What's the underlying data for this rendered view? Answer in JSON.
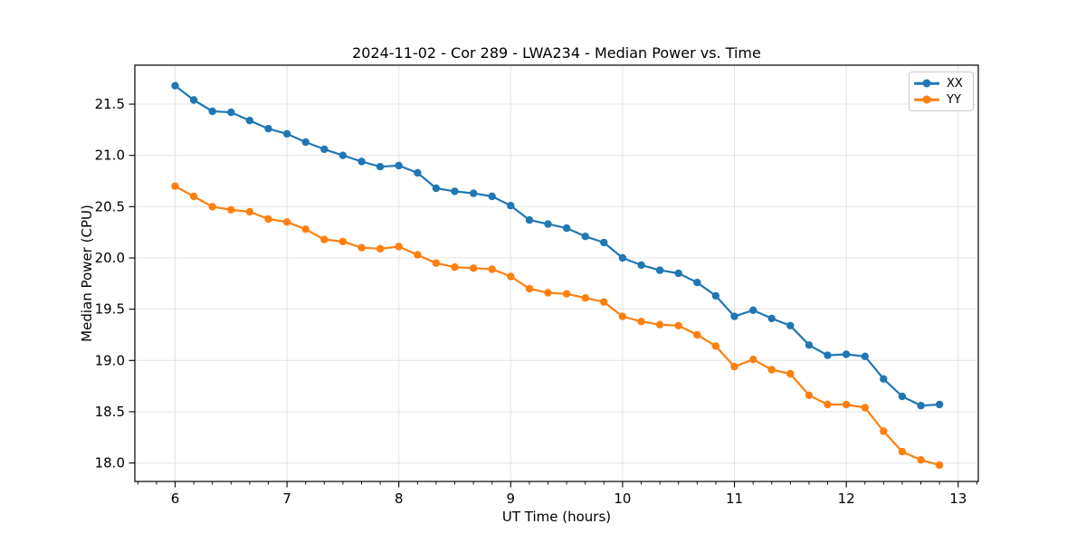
{
  "chart_data": {
    "type": "line",
    "title": "2024-11-02 - Cor 289 - LWA234 - Median Power vs. Time",
    "xlabel": "UT Time (hours)",
    "ylabel": "Median Power (CPU)",
    "xlim": [
      5.64,
      13.18
    ],
    "ylim": [
      17.82,
      21.88
    ],
    "x_ticks": [
      6,
      7,
      8,
      9,
      10,
      11,
      12,
      13
    ],
    "y_ticks": [
      18.0,
      18.5,
      19.0,
      19.5,
      20.0,
      20.5,
      21.0,
      21.5
    ],
    "minor_x_tick_interval_hours": 0.1667,
    "grid": true,
    "legend_position": "upper right",
    "x": [
      6.0,
      6.167,
      6.333,
      6.5,
      6.667,
      6.833,
      7.0,
      7.167,
      7.333,
      7.5,
      7.667,
      7.833,
      8.0,
      8.167,
      8.333,
      8.5,
      8.667,
      8.833,
      9.0,
      9.167,
      9.333,
      9.5,
      9.667,
      9.833,
      10.0,
      10.167,
      10.333,
      10.5,
      10.667,
      10.833,
      11.0,
      11.167,
      11.333,
      11.5,
      11.667,
      11.833,
      12.0,
      12.167,
      12.333,
      12.5,
      12.667,
      12.833
    ],
    "series": [
      {
        "name": "XX",
        "color": "#1f77b4",
        "values": [
          21.68,
          21.54,
          21.43,
          21.42,
          21.34,
          21.26,
          21.21,
          21.13,
          21.06,
          21.0,
          20.94,
          20.89,
          20.9,
          20.83,
          20.68,
          20.65,
          20.63,
          20.6,
          20.51,
          20.37,
          20.33,
          20.29,
          20.21,
          20.15,
          20.0,
          19.93,
          19.88,
          19.85,
          19.76,
          19.63,
          19.43,
          19.49,
          19.41,
          19.34,
          19.15,
          19.05,
          19.06,
          19.04,
          18.82,
          18.65,
          18.56,
          18.57
        ]
      },
      {
        "name": "YY",
        "color": "#ff7f0e",
        "values": [
          20.7,
          20.6,
          20.5,
          20.47,
          20.45,
          20.38,
          20.35,
          20.28,
          20.18,
          20.16,
          20.1,
          20.09,
          20.11,
          20.03,
          19.95,
          19.91,
          19.9,
          19.89,
          19.82,
          19.7,
          19.66,
          19.65,
          19.61,
          19.57,
          19.43,
          19.38,
          19.35,
          19.34,
          19.25,
          19.14,
          18.94,
          19.01,
          18.91,
          18.87,
          18.66,
          18.57,
          18.57,
          18.54,
          18.31,
          18.11,
          18.03,
          17.98
        ]
      }
    ]
  }
}
